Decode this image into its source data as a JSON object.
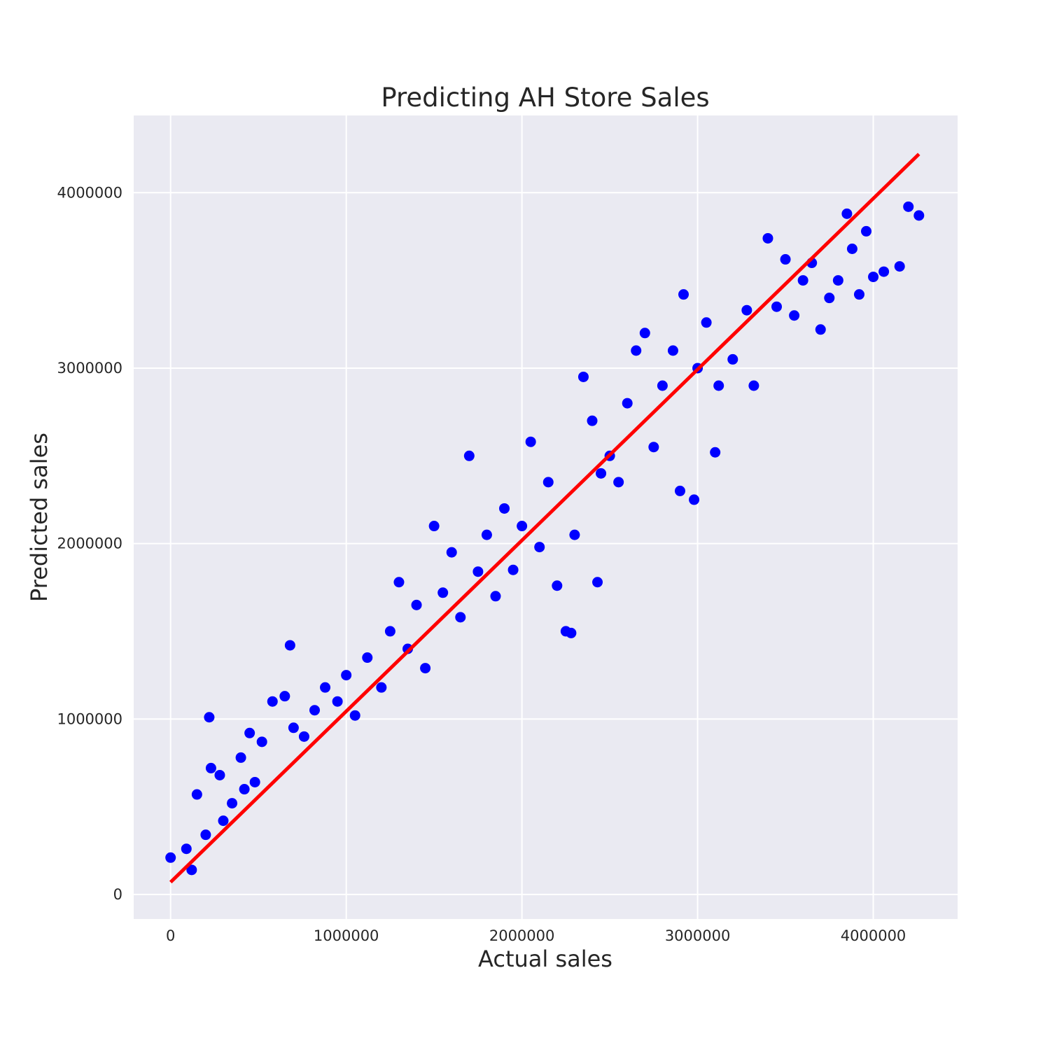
{
  "chart_data": {
    "type": "scatter",
    "title": "Predicting AH Store Sales",
    "xlabel": "Actual sales",
    "ylabel": "Predicted sales",
    "xlim": [
      -210000,
      4480000
    ],
    "ylim": [
      -140000,
      4440000
    ],
    "xticks": [
      0,
      1000000,
      2000000,
      3000000,
      4000000
    ],
    "yticks": [
      0,
      1000000,
      2000000,
      3000000,
      4000000
    ],
    "tick_labels_x": [
      "0",
      "1000000",
      "2000000",
      "3000000",
      "4000000"
    ],
    "tick_labels_y": [
      "0",
      "1000000",
      "2000000",
      "3000000",
      "4000000"
    ],
    "grid": true,
    "background_color": "#eaeaf2",
    "series": [
      {
        "kind": "points",
        "color": "#0000ff",
        "x": [
          0,
          90000,
          120000,
          150000,
          200000,
          220000,
          230000,
          280000,
          300000,
          350000,
          400000,
          420000,
          450000,
          480000,
          520000,
          580000,
          650000,
          680000,
          700000,
          760000,
          820000,
          880000,
          950000,
          1000000,
          1050000,
          1120000,
          1200000,
          1250000,
          1300000,
          1350000,
          1400000,
          1450000,
          1500000,
          1550000,
          1600000,
          1650000,
          1700000,
          1750000,
          1800000,
          1850000,
          1900000,
          1950000,
          2000000,
          2050000,
          2100000,
          2150000,
          2200000,
          2250000,
          2280000,
          2300000,
          2350000,
          2400000,
          2430000,
          2450000,
          2500000,
          2550000,
          2600000,
          2650000,
          2700000,
          2750000,
          2800000,
          2860000,
          2900000,
          2920000,
          2980000,
          3000000,
          3050000,
          3100000,
          3120000,
          3200000,
          3280000,
          3320000,
          3400000,
          3450000,
          3500000,
          3550000,
          3600000,
          3650000,
          3700000,
          3750000,
          3800000,
          3850000,
          3880000,
          3920000,
          3960000,
          4000000,
          4060000,
          4150000,
          4200000,
          4260000
        ],
        "y": [
          210000,
          260000,
          140000,
          570000,
          340000,
          1010000,
          720000,
          680000,
          420000,
          520000,
          780000,
          600000,
          920000,
          640000,
          870000,
          1100000,
          1130000,
          1420000,
          950000,
          900000,
          1050000,
          1180000,
          1100000,
          1250000,
          1020000,
          1350000,
          1180000,
          1500000,
          1780000,
          1400000,
          1650000,
          1290000,
          2100000,
          1720000,
          1950000,
          1580000,
          2500000,
          1840000,
          2050000,
          1700000,
          2200000,
          1850000,
          2100000,
          2580000,
          1980000,
          2350000,
          1760000,
          1500000,
          1490000,
          2050000,
          2950000,
          2700000,
          1780000,
          2400000,
          2500000,
          2350000,
          2800000,
          3100000,
          3200000,
          2550000,
          2900000,
          3100000,
          2300000,
          3420000,
          2250000,
          3000000,
          3260000,
          2520000,
          2900000,
          3050000,
          3330000,
          2900000,
          3740000,
          3350000,
          3620000,
          3300000,
          3500000,
          3600000,
          3220000,
          3400000,
          3500000,
          3880000,
          3680000,
          3420000,
          3780000,
          3520000,
          3550000,
          3580000,
          3920000,
          3870000
        ]
      },
      {
        "kind": "line",
        "color": "#ff0000",
        "x": [
          0,
          4260000
        ],
        "y": [
          70000,
          4220000
        ]
      }
    ]
  }
}
